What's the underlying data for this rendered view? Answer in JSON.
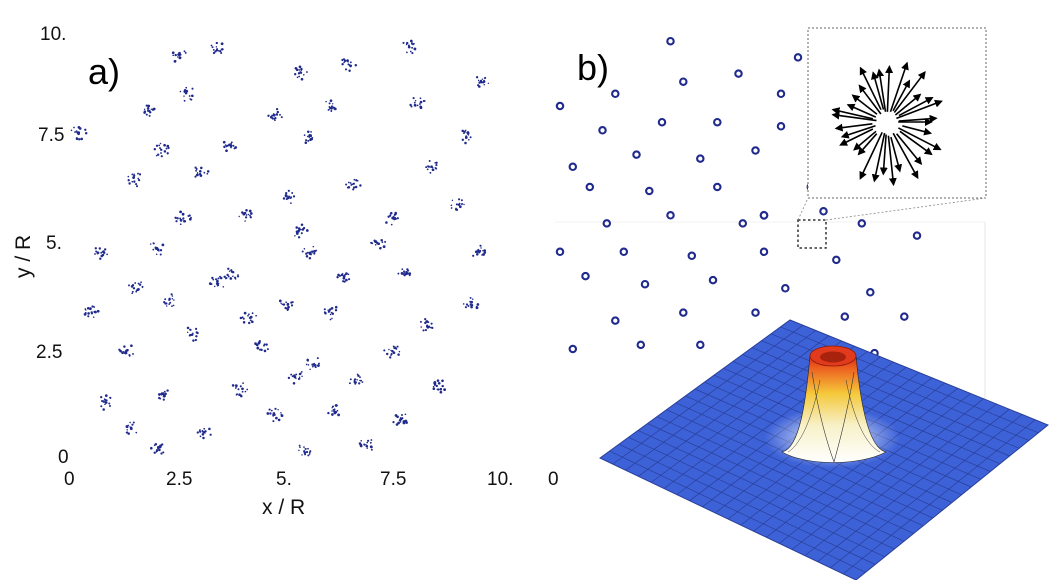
{
  "chart_data": [
    {
      "type": "scatter",
      "panel_label": "a)",
      "xlabel": "x / R",
      "ylabel": "y / R",
      "xlim": [
        0,
        10
      ],
      "ylim": [
        0,
        10
      ],
      "x_ticks": [
        "0",
        "2.5",
        "5.",
        "7.5",
        "10."
      ],
      "y_ticks": [
        "0",
        "2.5",
        "5.",
        "7.5",
        "10."
      ],
      "grid": false,
      "cluster_centers": [
        [
          2.5,
          9.4
        ],
        [
          3.4,
          9.6
        ],
        [
          5.3,
          9.0
        ],
        [
          6.4,
          9.2
        ],
        [
          7.8,
          9.6
        ],
        [
          9.5,
          8.8
        ],
        [
          1.8,
          8.1
        ],
        [
          2.7,
          8.5
        ],
        [
          4.7,
          8.0
        ],
        [
          6.0,
          8.2
        ],
        [
          8.0,
          8.3
        ],
        [
          0.2,
          7.6
        ],
        [
          2.1,
          7.2
        ],
        [
          3.7,
          7.3
        ],
        [
          5.5,
          7.5
        ],
        [
          9.1,
          7.5
        ],
        [
          1.5,
          6.5
        ],
        [
          3.0,
          6.7
        ],
        [
          5.0,
          6.1
        ],
        [
          6.5,
          6.4
        ],
        [
          8.3,
          6.8
        ],
        [
          2.6,
          5.6
        ],
        [
          4.0,
          5.7
        ],
        [
          5.3,
          5.3
        ],
        [
          7.4,
          5.6
        ],
        [
          8.9,
          5.9
        ],
        [
          0.7,
          4.8
        ],
        [
          2.0,
          4.9
        ],
        [
          3.7,
          4.3
        ],
        [
          5.5,
          4.8
        ],
        [
          7.1,
          5.0
        ],
        [
          9.4,
          4.8
        ],
        [
          1.5,
          4.0
        ],
        [
          3.4,
          4.1
        ],
        [
          5.0,
          3.6
        ],
        [
          6.3,
          4.2
        ],
        [
          7.7,
          4.3
        ],
        [
          0.5,
          3.4
        ],
        [
          2.3,
          3.7
        ],
        [
          4.1,
          3.3
        ],
        [
          6.0,
          3.4
        ],
        [
          8.2,
          3.1
        ],
        [
          9.2,
          3.6
        ],
        [
          1.3,
          2.5
        ],
        [
          2.8,
          2.9
        ],
        [
          4.4,
          2.6
        ],
        [
          5.6,
          2.2
        ],
        [
          7.4,
          2.5
        ],
        [
          0.8,
          1.3
        ],
        [
          2.2,
          1.5
        ],
        [
          3.9,
          1.6
        ],
        [
          5.2,
          1.9
        ],
        [
          6.6,
          1.8
        ],
        [
          8.5,
          1.7
        ],
        [
          1.4,
          0.7
        ],
        [
          3.1,
          0.6
        ],
        [
          4.7,
          1.0
        ],
        [
          6.1,
          1.1
        ],
        [
          7.6,
          0.9
        ],
        [
          2.0,
          0.2
        ],
        [
          5.4,
          0.2
        ],
        [
          6.8,
          0.3
        ]
      ]
    },
    {
      "type": "scatter",
      "panel_label": "b)",
      "x_ticks": [
        "0"
      ],
      "xlim": [
        0,
        10
      ],
      "ylim": [
        0,
        10
      ],
      "grid": false,
      "points": [
        [
          2.6,
          9.6
        ],
        [
          5.6,
          9.2
        ],
        [
          0.0,
          8.0
        ],
        [
          1.3,
          8.3
        ],
        [
          2.9,
          8.6
        ],
        [
          4.2,
          8.8
        ],
        [
          5.2,
          8.3
        ],
        [
          1.0,
          7.4
        ],
        [
          2.4,
          7.6
        ],
        [
          3.7,
          7.6
        ],
        [
          5.2,
          7.5
        ],
        [
          0.3,
          6.5
        ],
        [
          1.8,
          6.8
        ],
        [
          3.3,
          6.7
        ],
        [
          4.6,
          6.9
        ],
        [
          0.7,
          6.0
        ],
        [
          2.1,
          5.9
        ],
        [
          3.7,
          6.0
        ],
        [
          5.9,
          6.0
        ],
        [
          6.2,
          5.4
        ],
        [
          1.1,
          5.1
        ],
        [
          2.6,
          5.3
        ],
        [
          4.3,
          5.1
        ],
        [
          7.1,
          5.1
        ],
        [
          8.4,
          4.8
        ],
        [
          0.0,
          4.4
        ],
        [
          1.5,
          4.4
        ],
        [
          3.1,
          4.3
        ],
        [
          4.8,
          4.4
        ],
        [
          6.5,
          4.2
        ],
        [
          0.6,
          3.8
        ],
        [
          2.0,
          3.6
        ],
        [
          3.6,
          3.7
        ],
        [
          5.3,
          3.5
        ],
        [
          7.3,
          3.4
        ],
        [
          1.3,
          2.7
        ],
        [
          2.9,
          2.9
        ],
        [
          4.6,
          2.9
        ],
        [
          6.7,
          2.8
        ],
        [
          8.1,
          2.8
        ],
        [
          0.3,
          2.0
        ],
        [
          1.9,
          2.1
        ],
        [
          3.3,
          2.1
        ],
        [
          5.8,
          2.1
        ],
        [
          7.4,
          1.9
        ]
      ],
      "highlighted_point": [
        4.8,
        5.3
      ],
      "inset_arrows": {
        "type": "vector-field",
        "count": 32,
        "direction": "radially outward from the particle position"
      },
      "inset_surface": {
        "type": "3d-surface",
        "shape": "ring-shaped peak (hollow cylinder) on a flat plane",
        "colors": {
          "plane": "#3a5fd6",
          "peak_top": "#e83a1a",
          "peak_mid": "#f5d430",
          "peak_base": "#ffffff"
        }
      }
    }
  ],
  "colors": {
    "points": "#1f2a8c",
    "arrows": "#000000",
    "frame": "#777777"
  }
}
